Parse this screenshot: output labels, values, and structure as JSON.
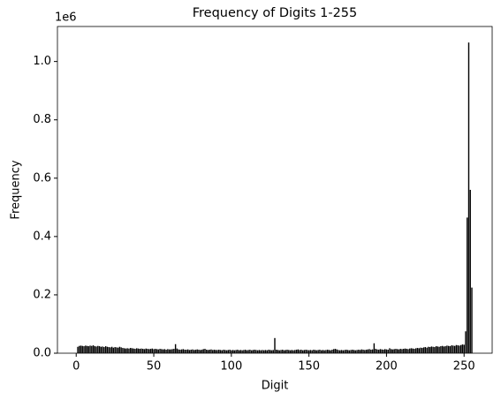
{
  "chart_data": {
    "type": "bar",
    "title": "Frequency of Digits 1-255",
    "xlabel": "Digit",
    "ylabel": "Frequency",
    "y_offset_label": "1e6",
    "color": "#000000",
    "x": [
      1,
      2,
      3,
      4,
      5,
      6,
      7,
      8,
      9,
      10,
      11,
      12,
      13,
      14,
      15,
      16,
      17,
      18,
      19,
      20,
      21,
      22,
      23,
      24,
      25,
      26,
      27,
      28,
      29,
      30,
      31,
      32,
      33,
      34,
      35,
      36,
      37,
      38,
      39,
      40,
      41,
      42,
      43,
      44,
      45,
      46,
      47,
      48,
      49,
      50,
      51,
      52,
      53,
      54,
      55,
      56,
      57,
      58,
      59,
      60,
      61,
      62,
      63,
      64,
      65,
      66,
      67,
      68,
      69,
      70,
      71,
      72,
      73,
      74,
      75,
      76,
      77,
      78,
      79,
      80,
      81,
      82,
      83,
      84,
      85,
      86,
      87,
      88,
      89,
      90,
      91,
      92,
      93,
      94,
      95,
      96,
      97,
      98,
      99,
      100,
      101,
      102,
      103,
      104,
      105,
      106,
      107,
      108,
      109,
      110,
      111,
      112,
      113,
      114,
      115,
      116,
      117,
      118,
      119,
      120,
      121,
      122,
      123,
      124,
      125,
      126,
      127,
      128,
      129,
      130,
      131,
      132,
      133,
      134,
      135,
      136,
      137,
      138,
      139,
      140,
      141,
      142,
      143,
      144,
      145,
      146,
      147,
      148,
      149,
      150,
      151,
      152,
      153,
      154,
      155,
      156,
      157,
      158,
      159,
      160,
      161,
      162,
      163,
      164,
      165,
      166,
      167,
      168,
      169,
      170,
      171,
      172,
      173,
      174,
      175,
      176,
      177,
      178,
      179,
      180,
      181,
      182,
      183,
      184,
      185,
      186,
      187,
      188,
      189,
      190,
      191,
      192,
      193,
      194,
      195,
      196,
      197,
      198,
      199,
      200,
      201,
      202,
      203,
      204,
      205,
      206,
      207,
      208,
      209,
      210,
      211,
      212,
      213,
      214,
      215,
      216,
      217,
      218,
      219,
      220,
      221,
      222,
      223,
      224,
      225,
      226,
      227,
      228,
      229,
      230,
      231,
      232,
      233,
      234,
      235,
      236,
      237,
      238,
      239,
      240,
      241,
      242,
      243,
      244,
      245,
      246,
      247,
      248,
      249,
      250,
      251,
      252,
      253,
      254,
      255
    ],
    "values": [
      22000,
      25000,
      26000,
      25000,
      24000,
      26000,
      25000,
      24000,
      26000,
      25000,
      27000,
      24000,
      23000,
      25000,
      24000,
      22000,
      23000,
      21000,
      24000,
      22000,
      21000,
      20000,
      22000,
      19000,
      21000,
      20000,
      19000,
      22000,
      20000,
      18000,
      17000,
      16000,
      17000,
      16000,
      18000,
      17000,
      16000,
      15000,
      17000,
      16000,
      15000,
      16000,
      15000,
      14000,
      16000,
      15000,
      14000,
      15000,
      16000,
      14000,
      15000,
      14000,
      13000,
      15000,
      14000,
      13000,
      14000,
      12000,
      14000,
      13000,
      13000,
      14000,
      15000,
      31000,
      16000,
      13000,
      12000,
      13000,
      14000,
      12000,
      12000,
      13000,
      11000,
      12000,
      13000,
      11000,
      12000,
      13000,
      12000,
      11000,
      12000,
      14000,
      15000,
      12000,
      11000,
      12000,
      13000,
      11000,
      12000,
      11000,
      11000,
      12000,
      11000,
      10000,
      12000,
      11000,
      10000,
      11000,
      12000,
      10000,
      11000,
      10000,
      11000,
      12000,
      10000,
      11000,
      10000,
      11000,
      12000,
      10000,
      11000,
      12000,
      10000,
      11000,
      12000,
      11000,
      10000,
      11000,
      10000,
      11000,
      10000,
      11000,
      10000,
      12000,
      11000,
      10000,
      11000,
      52000,
      12000,
      11000,
      10000,
      11000,
      12000,
      10000,
      11000,
      12000,
      11000,
      10000,
      11000,
      10000,
      11000,
      12000,
      13000,
      11000,
      12000,
      10000,
      11000,
      12000,
      11000,
      10000,
      11000,
      10000,
      12000,
      11000,
      10000,
      11000,
      12000,
      10000,
      11000,
      10000,
      11000,
      12000,
      11000,
      10000,
      12000,
      14000,
      15000,
      13000,
      11000,
      10000,
      11000,
      10000,
      11000,
      12000,
      11000,
      10000,
      11000,
      12000,
      11000,
      10000,
      11000,
      12000,
      11000,
      13000,
      12000,
      11000,
      12000,
      13000,
      14000,
      12000,
      13000,
      34000,
      15000,
      13000,
      12000,
      14000,
      13000,
      12000,
      14000,
      13000,
      12000,
      17000,
      14000,
      13000,
      14000,
      15000,
      14000,
      13000,
      15000,
      14000,
      15000,
      16000,
      15000,
      14000,
      16000,
      17000,
      16000,
      15000,
      17000,
      18000,
      17000,
      19000,
      18000,
      20000,
      21000,
      19000,
      22000,
      21000,
      23000,
      22000,
      21000,
      24000,
      23000,
      22000,
      24000,
      25000,
      23000,
      24000,
      26000,
      25000,
      24000,
      27000,
      26000,
      25000,
      28000,
      27000,
      26000,
      28000,
      30000,
      29000,
      75000,
      465000,
      1065000,
      560000,
      225000
    ],
    "xlim": [
      -12.1,
      268.1
    ],
    "xticks": [
      0,
      50,
      100,
      150,
      200,
      250
    ],
    "ylim": [
      0,
      1120000
    ],
    "yticks": [
      {
        "value": 0,
        "label": "0.0"
      },
      {
        "value": 200000,
        "label": "0.2"
      },
      {
        "value": 400000,
        "label": "0.4"
      },
      {
        "value": 600000,
        "label": "0.6"
      },
      {
        "value": 800000,
        "label": "0.8"
      },
      {
        "value": 1000000,
        "label": "1.0"
      }
    ]
  }
}
